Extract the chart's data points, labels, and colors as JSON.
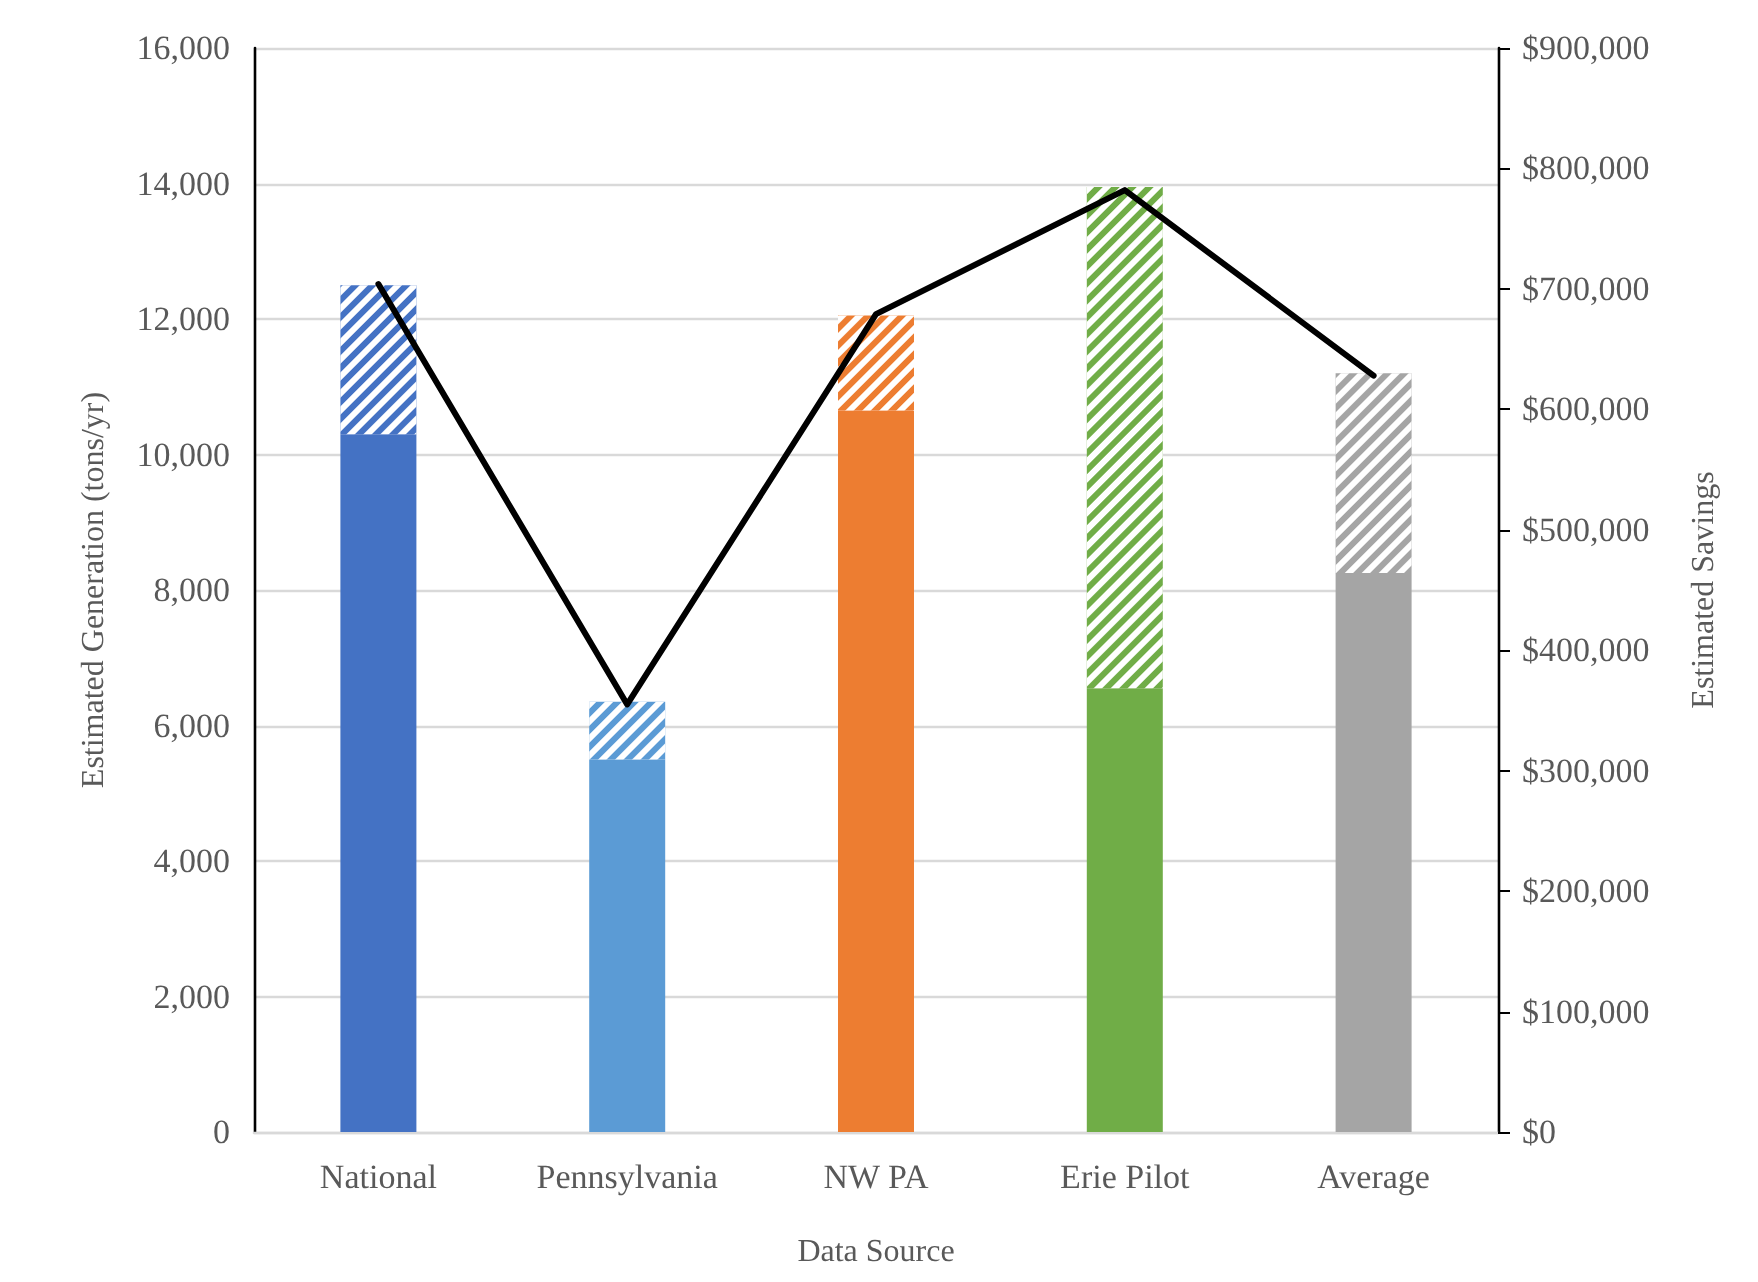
{
  "chart_data": {
    "type": "bar",
    "stacked": true,
    "xlabel": "Data Source",
    "ylabel": "Estimated Generation (tons/yr)",
    "y2label": "Estimated Savings",
    "categories": [
      "National",
      "Pennsylvania",
      "NW PA",
      "Erie Pilot",
      "Average"
    ],
    "series": [
      {
        "colors": [
          "#4472c4",
          "#5b9bd5",
          "#ed7d31",
          "#70ad47",
          "#a5a5a5"
        ],
        "values": [
          10300,
          5500,
          10650,
          6550,
          8250
        ]
      },
      {
        "colors": [
          "#4472c4",
          "#5b9bd5",
          "#ed7d31",
          "#70ad47",
          "#a5a5a5"
        ],
        "values": [
          2200,
          850,
          1400,
          7400,
          2950
        ]
      },
      {
        "type": "line",
        "axis": "y2",
        "color": "#000000",
        "values": [
          704000,
          355000,
          679000,
          782000,
          628000
        ]
      }
    ],
    "ylim": [
      0,
      16000
    ],
    "yticks": [
      {
        "value": 0,
        "label": "0"
      },
      {
        "value": 2000,
        "label": "2,000"
      },
      {
        "value": 4000,
        "label": "4,000"
      },
      {
        "value": 6000,
        "label": "6,000"
      },
      {
        "value": 8000,
        "label": "8,000"
      },
      {
        "value": 10000,
        "label": "10,000"
      },
      {
        "value": 12000,
        "label": "12,000"
      },
      {
        "value": 14000,
        "label": "14,000"
      },
      {
        "value": 16000,
        "label": "16,000"
      }
    ],
    "y2lim": [
      0,
      900000
    ],
    "y2ticks": [
      {
        "value": 0,
        "label": "$0"
      },
      {
        "value": 100000,
        "label": "$100,000"
      },
      {
        "value": 200000,
        "label": "$200,000"
      },
      {
        "value": 300000,
        "label": "$300,000"
      },
      {
        "value": 400000,
        "label": "$400,000"
      },
      {
        "value": 500000,
        "label": "$500,000"
      },
      {
        "value": 600000,
        "label": "$600,000"
      },
      {
        "value": 700000,
        "label": "$700,000"
      },
      {
        "value": 800000,
        "label": "$800,000"
      },
      {
        "value": 900000,
        "label": "$900,000"
      }
    ],
    "grid": "y",
    "marker": "none",
    "line_style": "solid"
  }
}
